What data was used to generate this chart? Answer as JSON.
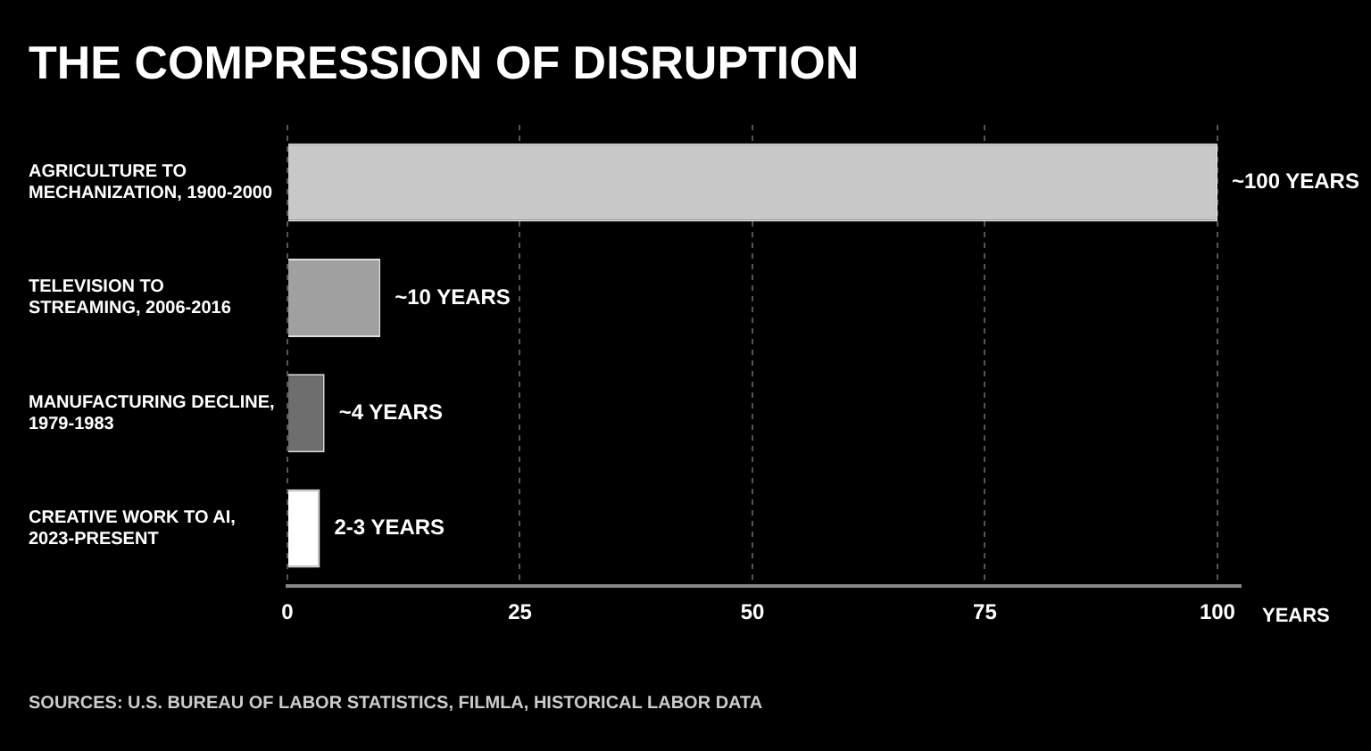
{
  "chart_data": {
    "type": "bar",
    "orientation": "horizontal",
    "title": "THE COMPRESSION OF DISRUPTION",
    "categories": [
      "AGRICULTURE TO MECHANIZATION, 1900-2000",
      "TELEVISION TO STREAMING, 2006-2016",
      "MANUFACTURING DECLINE, 1979-1983",
      "CREATIVE WORK TO AI, 2023-PRESENT"
    ],
    "values": [
      100,
      10,
      4,
      3.5
    ],
    "colors": [
      "#c8c8c8",
      "#a0a0a0",
      "#6e6e6e",
      "#ffffff"
    ],
    "value_labels": [
      "~100 YEARS",
      "~10 YEARS",
      "~4 YEARS",
      "2-3 YEARS"
    ],
    "xlabel": "YEARS",
    "xlim": [
      0,
      102.5
    ],
    "xticks": [
      0,
      25,
      50,
      75,
      100
    ],
    "grid": "x",
    "annotations": [
      "SOURCES: U.S. BUREAU OF LABOR STATISTICS, FILMLA, HISTORICAL LABOR DATA"
    ]
  }
}
